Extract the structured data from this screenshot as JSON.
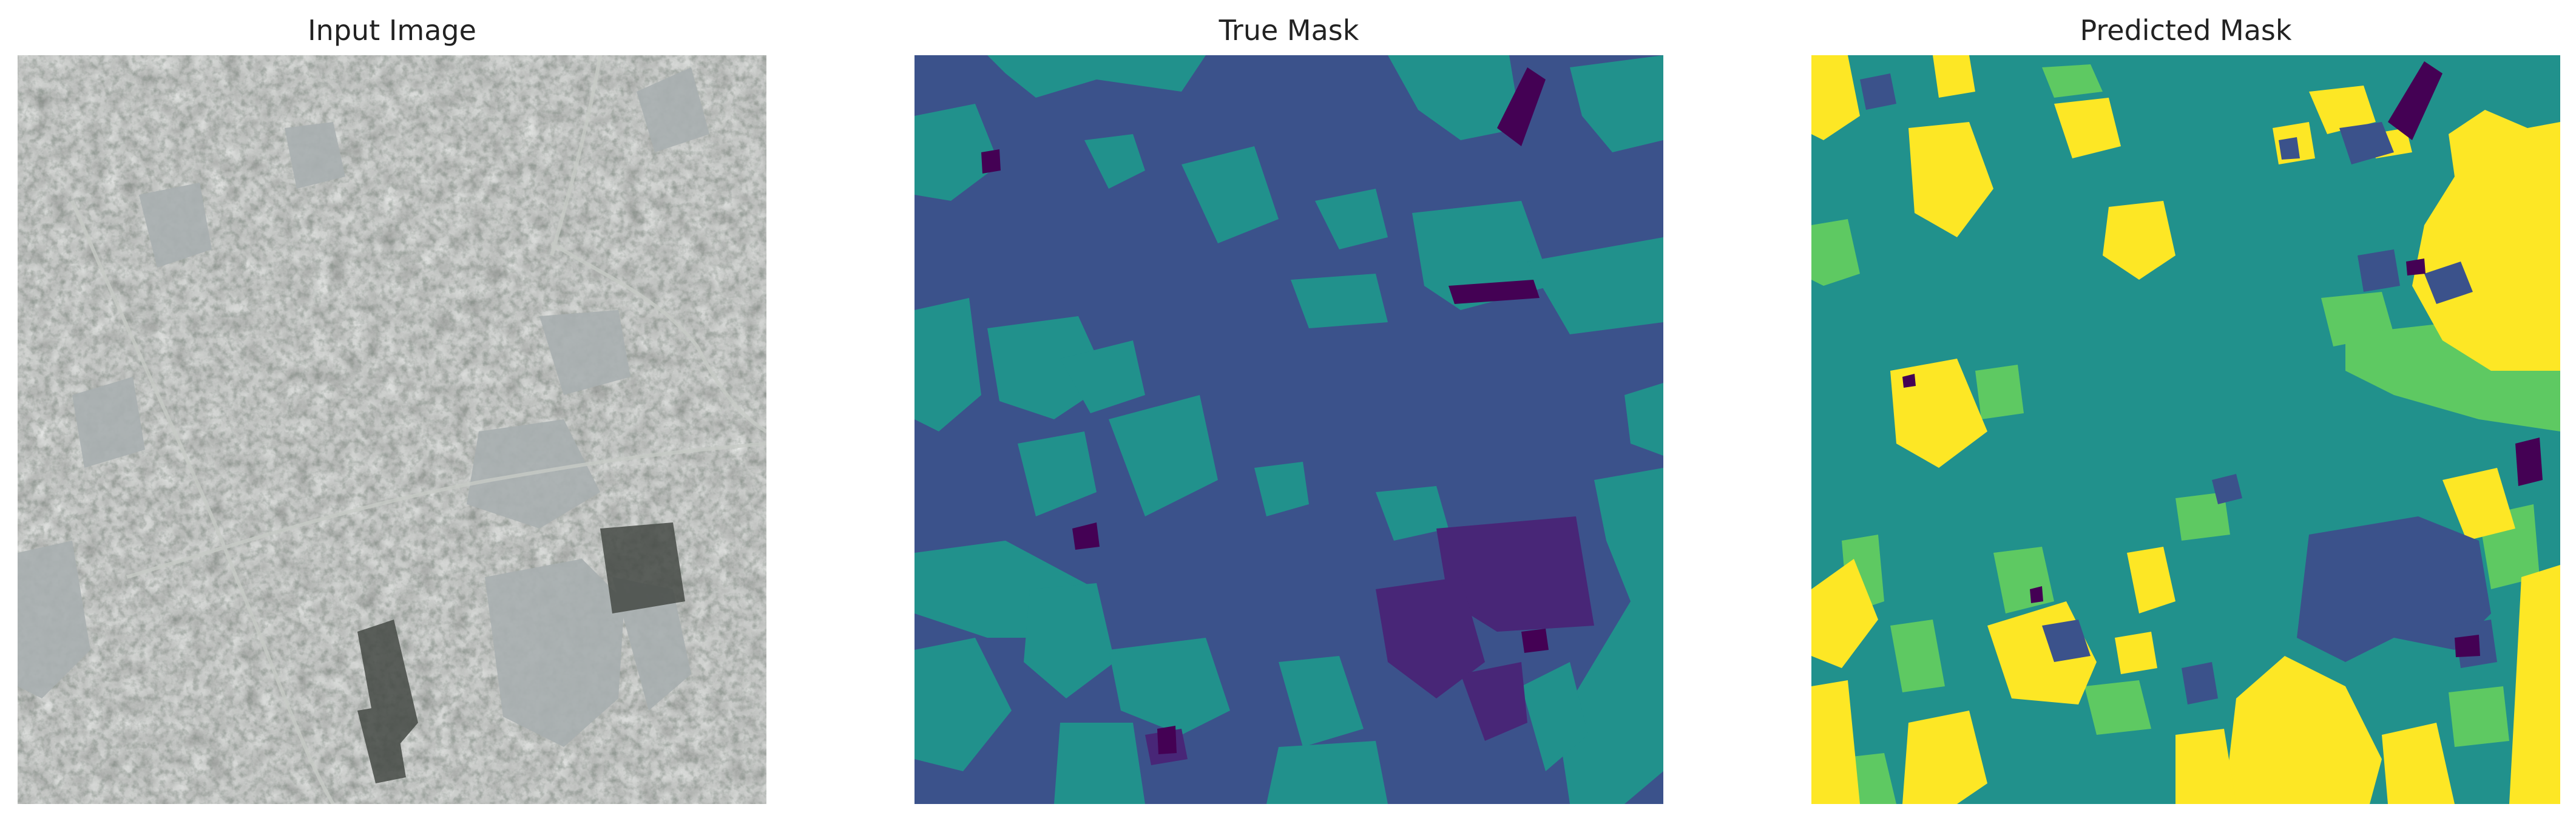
{
  "panels": [
    {
      "title": "Input Image"
    },
    {
      "title": "True Mask"
    },
    {
      "title": "Predicted Mask"
    }
  ],
  "colors": {
    "viridis_0": "#440154",
    "viridis_1": "#3b528b",
    "viridis_2": "#21918c",
    "viridis_3": "#5ec962",
    "viridis_4": "#fde725",
    "satellite_base": "#8c918b"
  }
}
